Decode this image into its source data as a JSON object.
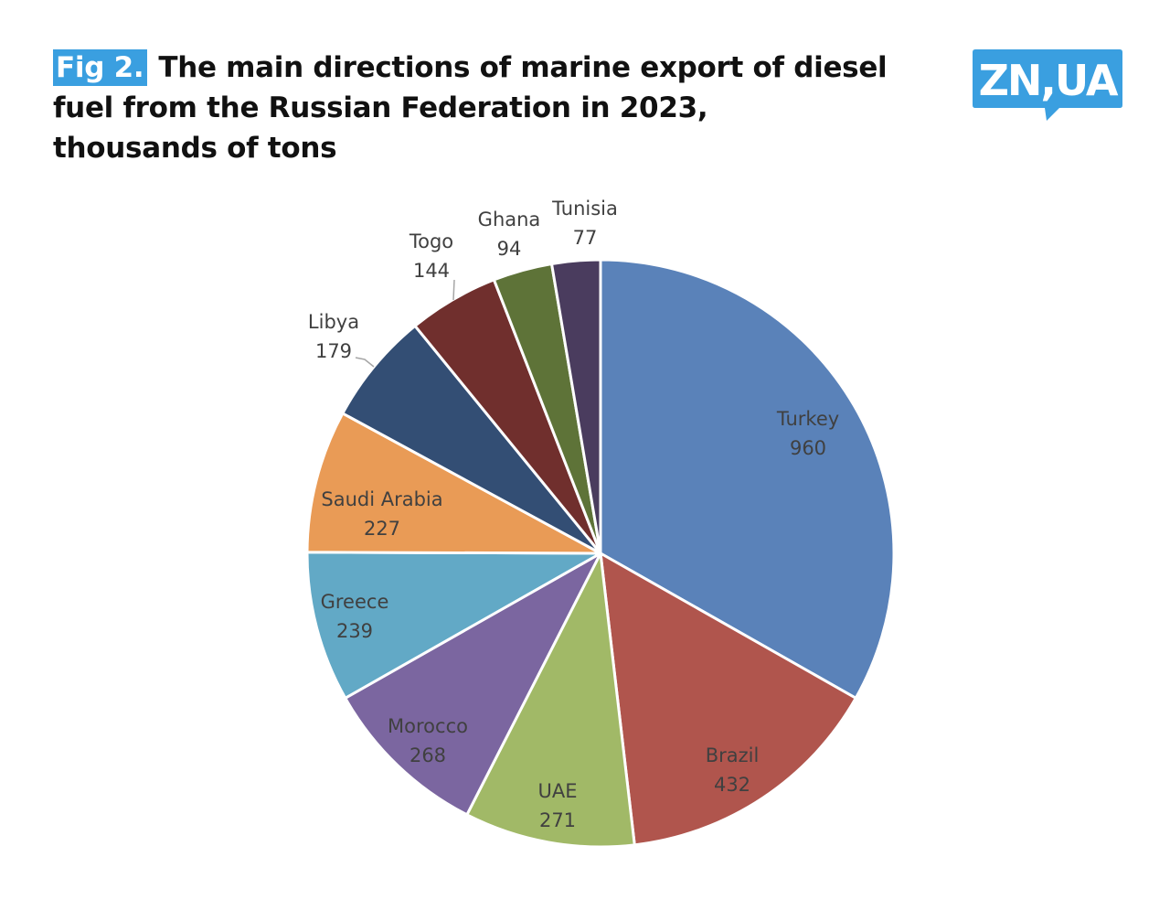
{
  "header": {
    "fig_tag": "Fig 2.",
    "title_line1": "The main directions of marine export of diesel",
    "title_line2": "fuel from the Russian Federation in 2023,",
    "title_line3": "thousands of tons"
  },
  "logo": {
    "text": "ZN,UA",
    "color": "#3a9fe0"
  },
  "chart_data": {
    "type": "pie",
    "title": "The main directions of marine export of diesel fuel from the Russian Federation in 2023, thousands of tons",
    "categories": [
      "Turkey",
      "Brazil",
      "UAE",
      "Morocco",
      "Greece",
      "Saudi Arabia",
      "Libya",
      "Togo",
      "Ghana",
      "Tunisia"
    ],
    "values": [
      960,
      432,
      271,
      268,
      239,
      227,
      179,
      144,
      94,
      77
    ],
    "colors": [
      "#5a82b9",
      "#b0554d",
      "#a1b967",
      "#7b66a0",
      "#62a9c6",
      "#e99b56",
      "#334e74",
      "#702f2d",
      "#5e7338",
      "#4a3c5e"
    ],
    "labels": [
      {
        "name": "Turkey",
        "value": "960"
      },
      {
        "name": "Brazil",
        "value": "432"
      },
      {
        "name": "UAE",
        "value": "271"
      },
      {
        "name": "Morocco",
        "value": "268"
      },
      {
        "name": "Greece",
        "value": "239"
      },
      {
        "name": "Saudi Arabia",
        "value": "227"
      },
      {
        "name": "Libya",
        "value": "179"
      },
      {
        "name": "Togo",
        "value": "144"
      },
      {
        "name": "Ghana",
        "value": "94"
      },
      {
        "name": "Tunisia",
        "value": "77"
      }
    ],
    "legend": "none"
  }
}
